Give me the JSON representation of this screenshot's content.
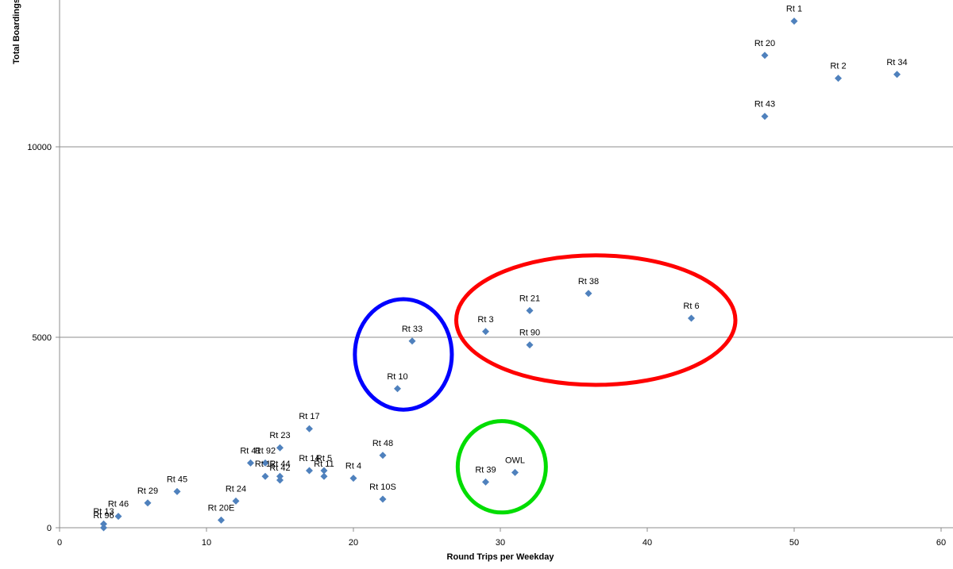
{
  "chart_data": {
    "type": "scatter",
    "xlabel": "Round Trips per Weekday",
    "ylabel": "Total Boardings",
    "xlim": [
      0,
      60
    ],
    "ylim": [
      0,
      14000
    ],
    "x_ticks": [
      "0",
      "10",
      "20",
      "30",
      "40",
      "50",
      "60"
    ],
    "y_ticks": [
      "0",
      "5000",
      "10000"
    ],
    "grid": "horizontal",
    "marker_color": "#4f81bd",
    "points": [
      {
        "label": "Rt 1",
        "x": 50,
        "y": 13300
      },
      {
        "label": "Rt 20",
        "x": 48,
        "y": 12400
      },
      {
        "label": "Rt 2",
        "x": 53,
        "y": 11800
      },
      {
        "label": "Rt 34",
        "x": 57,
        "y": 11900
      },
      {
        "label": "Rt 43",
        "x": 48,
        "y": 10800
      },
      {
        "label": "Rt 38",
        "x": 36,
        "y": 6150
      },
      {
        "label": "Rt 21",
        "x": 32,
        "y": 5700
      },
      {
        "label": "Rt 6",
        "x": 43,
        "y": 5500
      },
      {
        "label": "Rt 3",
        "x": 29,
        "y": 5150
      },
      {
        "label": "Rt 90",
        "x": 32,
        "y": 4800
      },
      {
        "label": "Rt 33",
        "x": 24,
        "y": 4900
      },
      {
        "label": "Rt 10",
        "x": 23,
        "y": 3650
      },
      {
        "label": "Rt 17",
        "x": 17,
        "y": 2600
      },
      {
        "label": "Rt 23",
        "x": 15,
        "y": 2100
      },
      {
        "label": "Rt 48",
        "x": 22,
        "y": 1900
      },
      {
        "label": "Rt 41",
        "x": 13,
        "y": 1700
      },
      {
        "label": "Rt 92",
        "x": 14,
        "y": 1700
      },
      {
        "label": "Rt 44",
        "x": 15,
        "y": 1350
      },
      {
        "label": "Rt 12",
        "x": 14,
        "y": 1350
      },
      {
        "label": "Rt 42",
        "x": 15,
        "y": 1250
      },
      {
        "label": "Rt 14",
        "x": 17,
        "y": 1500
      },
      {
        "label": "Rt 5",
        "x": 18,
        "y": 1500
      },
      {
        "label": "Rt 11",
        "x": 18,
        "y": 1350
      },
      {
        "label": "Rt 4",
        "x": 20,
        "y": 1300
      },
      {
        "label": "OWL",
        "x": 31,
        "y": 1450
      },
      {
        "label": "Rt 39",
        "x": 29,
        "y": 1200
      },
      {
        "label": "Rt 10S",
        "x": 22,
        "y": 750
      },
      {
        "label": "Rt 45",
        "x": 8,
        "y": 950
      },
      {
        "label": "Rt 29",
        "x": 6,
        "y": 650
      },
      {
        "label": "Rt 24",
        "x": 12,
        "y": 700
      },
      {
        "label": "Rt 46",
        "x": 4,
        "y": 300
      },
      {
        "label": "Rt 20E",
        "x": 11,
        "y": 200
      },
      {
        "label": "Rt 13",
        "x": 3,
        "y": 100
      },
      {
        "label": "Rt 96",
        "x": 3,
        "y": 0
      }
    ],
    "annotations": [
      {
        "shape": "ellipse",
        "color": "#ff0000",
        "cx": 36.5,
        "cy": 5450,
        "rx": 9.5,
        "ry": 1700
      },
      {
        "shape": "ellipse",
        "color": "#0000ff",
        "cx": 23.4,
        "cy": 4550,
        "rx": 3.3,
        "ry": 1450
      },
      {
        "shape": "ellipse",
        "color": "#00dd00",
        "cx": 30.1,
        "cy": 1600,
        "rx": 3.0,
        "ry": 1200
      }
    ]
  }
}
